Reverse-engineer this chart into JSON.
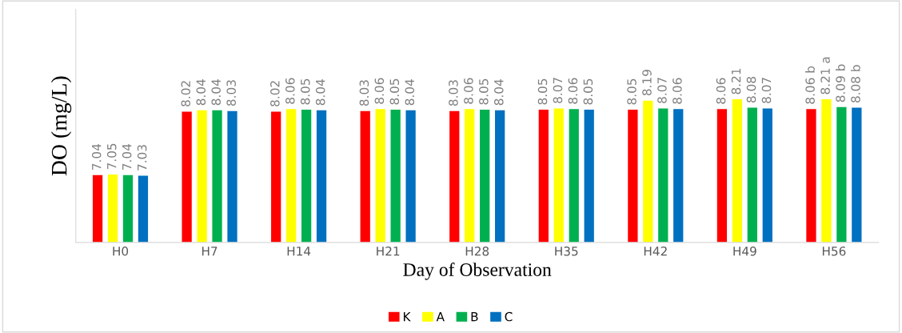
{
  "chart_data": {
    "type": "bar",
    "xlabel": "Day of Observation",
    "ylabel": "DO (mg/L)",
    "categories": [
      "H0",
      "H7",
      "H14",
      "H21",
      "H28",
      "H35",
      "H42",
      "H49",
      "H56"
    ],
    "series": [
      {
        "name": "K",
        "color": "#ff0000",
        "values": [
          7.04,
          8.02,
          8.02,
          8.03,
          8.03,
          8.05,
          8.05,
          8.06,
          8.06
        ],
        "value_labels": [
          "7.04",
          "8.02",
          "8.02",
          "8.03",
          "8.03",
          "8.05",
          "8.05",
          "8.06",
          "8.06 b"
        ]
      },
      {
        "name": "A",
        "color": "#ffff00",
        "values": [
          7.05,
          8.04,
          8.06,
          8.06,
          8.06,
          8.07,
          8.19,
          8.21,
          8.21
        ],
        "value_labels": [
          "7.05",
          "8.04",
          "8.06",
          "8.06",
          "8.06",
          "8.07",
          "8.19",
          "8.21",
          "8.21 a"
        ]
      },
      {
        "name": "B",
        "color": "#00b050",
        "values": [
          7.04,
          8.04,
          8.05,
          8.05,
          8.05,
          8.06,
          8.07,
          8.08,
          8.09
        ],
        "value_labels": [
          "7.04",
          "8.04",
          "8.05",
          "8.05",
          "8.05",
          "8.06",
          "8.07",
          "8.08",
          "8.09 b"
        ]
      },
      {
        "name": "C",
        "color": "#0070c0",
        "values": [
          7.03,
          8.03,
          8.04,
          8.04,
          8.04,
          8.05,
          8.06,
          8.07,
          8.08
        ],
        "value_labels": [
          "7.03",
          "8.03",
          "8.04",
          "8.04",
          "8.04",
          "8.05",
          "8.06",
          "8.07",
          "8.08 b"
        ]
      }
    ],
    "ylim": [
      6,
      9.6
    ],
    "tick_labels": "x",
    "grid": false,
    "legend": "bottom"
  }
}
